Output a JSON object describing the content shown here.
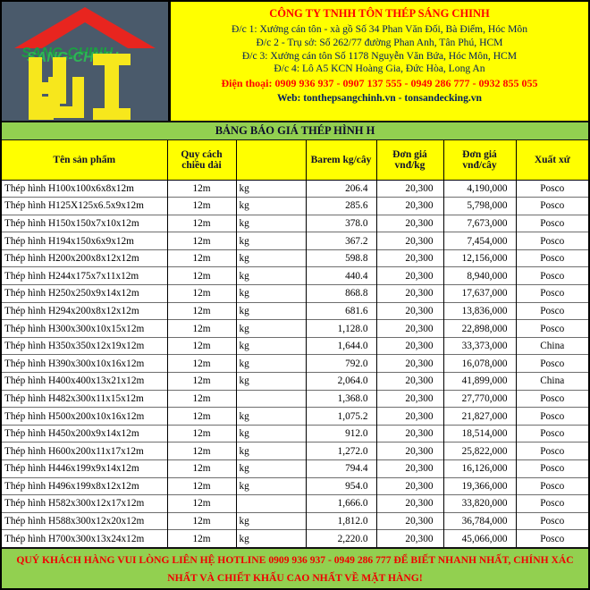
{
  "header": {
    "company_name": "CÔNG TY TNHH TÔN THÉP SÁNG CHINH",
    "addresses": [
      "Đ/c 1: Xưởng cán tôn - xà gồ Số 34 Phan Văn Đối, Bà Điểm, Hóc Môn",
      "Đ/c 2 - Trụ sở: Số 262/77 đường Phan Anh, Tân Phú, HCM",
      "Đ/c 3: Xưởng cán tôn Số 1178 Nguyễn Văn Bứa, Hóc Môn, HCM",
      "Đ/c 4: Lô A5 KCN Hoàng Gia, Đức Hòa, Long An"
    ],
    "phone_line": "Điện thoại: 0909 936 937 - 0907 137 555 - 0949 286 777 - 0932 855 055",
    "web_line": "Web: tonthepsangchinh.vn  - tonsandecking.vn",
    "logo": {
      "brand_text": "SANG-CHINH"
    }
  },
  "banner": {
    "title": "BẢNG BÁO GIÁ THÉP HÌNH H"
  },
  "table": {
    "columns": [
      "Tên sản phẩm",
      "Quy cách chiều dài",
      "",
      "Barem kg/cây",
      "Đơn giá vnđ/kg",
      "Đơn giá vnđ/cây",
      "Xuất xứ"
    ],
    "rows": [
      [
        "Thép hình H100x100x6x8x12m",
        "12m",
        "kg",
        "206.4",
        "20,300",
        "4,190,000",
        "Posco"
      ],
      [
        "Thép hình H125X125x6.5x9x12m",
        "12m",
        "kg",
        "285.6",
        "20,300",
        "5,798,000",
        "Posco"
      ],
      [
        "Thép hình H150x150x7x10x12m",
        "12m",
        "kg",
        "378.0",
        "20,300",
        "7,673,000",
        "Posco"
      ],
      [
        "Thép hình H194x150x6x9x12m",
        "12m",
        "kg",
        "367.2",
        "20,300",
        "7,454,000",
        "Posco"
      ],
      [
        "Thép hình H200x200x8x12x12m",
        "12m",
        "kg",
        "598.8",
        "20,300",
        "12,156,000",
        "Posco"
      ],
      [
        "Thép hình H244x175x7x11x12m",
        "12m",
        "kg",
        "440.4",
        "20,300",
        "8,940,000",
        "Posco"
      ],
      [
        "Thép hình H250x250x9x14x12m",
        "12m",
        "kg",
        "868.8",
        "20,300",
        "17,637,000",
        "Posco"
      ],
      [
        "Thép hình H294x200x8x12x12m",
        "12m",
        "kg",
        "681.6",
        "20,300",
        "13,836,000",
        "Posco"
      ],
      [
        "Thép hình H300x300x10x15x12m",
        "12m",
        "kg",
        "1,128.0",
        "20,300",
        "22,898,000",
        "Posco"
      ],
      [
        "Thép hình H350x350x12x19x12m",
        "12m",
        "kg",
        "1,644.0",
        "20,300",
        "33,373,000",
        "China"
      ],
      [
        "Thép hình H390x300x10x16x12m",
        "12m",
        "kg",
        "792.0",
        "20,300",
        "16,078,000",
        "Posco"
      ],
      [
        "Thép hình H400x400x13x21x12m",
        "12m",
        "kg",
        "2,064.0",
        "20,300",
        "41,899,000",
        "China"
      ],
      [
        "Thép hình H482x300x11x15x12m",
        "12m",
        "",
        "1,368.0",
        "20,300",
        "27,770,000",
        "Posco"
      ],
      [
        "Thép hình H500x200x10x16x12m",
        "12m",
        "kg",
        "1,075.2",
        "20,300",
        "21,827,000",
        "Posco"
      ],
      [
        "Thép hình H450x200x9x14x12m",
        "12m",
        "kg",
        "912.0",
        "20,300",
        "18,514,000",
        "Posco"
      ],
      [
        "Thép hình H600x200x11x17x12m",
        "12m",
        "kg",
        "1,272.0",
        "20,300",
        "25,822,000",
        "Posco"
      ],
      [
        "Thép hình H446x199x9x14x12m",
        "12m",
        "kg",
        "794.4",
        "20,300",
        "16,126,000",
        "Posco"
      ],
      [
        "Thép hình H496x199x8x12x12m",
        "12m",
        "kg",
        "954.0",
        "20,300",
        "19,366,000",
        "Posco"
      ],
      [
        "Thép hình H582x300x12x17x12m",
        "12m",
        "",
        "1,666.0",
        "20,300",
        "33,820,000",
        "Posco"
      ],
      [
        "Thép hình H588x300x12x20x12m",
        "12m",
        "kg",
        "1,812.0",
        "20,300",
        "36,784,000",
        "Posco"
      ],
      [
        "Thép hình H700x300x13x24x12m",
        "12m",
        "kg",
        "2,220.0",
        "20,300",
        "45,066,000",
        "Posco"
      ]
    ]
  },
  "footer": {
    "text": "QUÝ KHÁCH HÀNG VUI LÒNG LIÊN HỆ HOTLINE 0909 936 937 - 0949 286 777 ĐỂ BIẾT NHANH NHẤT, CHÍNH XÁC NHẤT VÀ CHIẾT KHẤU CAO NHẤT VỀ MẶT HÀNG!"
  },
  "colors": {
    "yellow": "#FFFF00",
    "green_band": "#92D050",
    "red_text": "#FF0000",
    "navy_text": "#002060",
    "logo_background": "#4A5A6B",
    "logo_roof_red": "#E8251F",
    "logo_brand_green": "#00A651",
    "logo_glyph_yellow": "#F7E71C"
  }
}
